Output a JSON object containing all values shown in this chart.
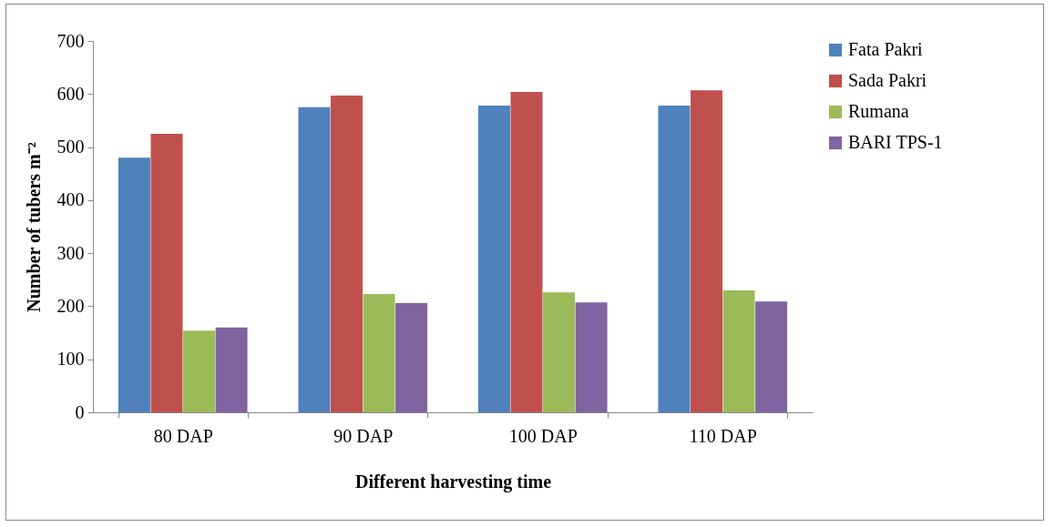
{
  "chart_data": {
    "type": "bar",
    "xlabel": "Different harvesting time",
    "ylabel": "Number of tubers m⁻²",
    "categories": [
      "80 DAP",
      "90 DAP",
      "100 DAP",
      "110 DAP"
    ],
    "series": [
      {
        "name": "Fata Pakri",
        "color": "#4f81bd",
        "values": [
          480,
          575,
          578,
          578
        ]
      },
      {
        "name": "Sada Pakri",
        "color": "#c0504d",
        "values": [
          525,
          597,
          604,
          607
        ]
      },
      {
        "name": "Rumana",
        "color": "#9bbb59",
        "values": [
          154,
          223,
          226,
          230
        ]
      },
      {
        "name": "BARI TPS-1",
        "color": "#8064a2",
        "values": [
          160,
          206,
          207,
          209
        ]
      }
    ],
    "ylim": [
      0,
      700
    ],
    "yticks": [
      0,
      100,
      200,
      300,
      400,
      500,
      600,
      700
    ],
    "grid": false,
    "legend": "right"
  }
}
